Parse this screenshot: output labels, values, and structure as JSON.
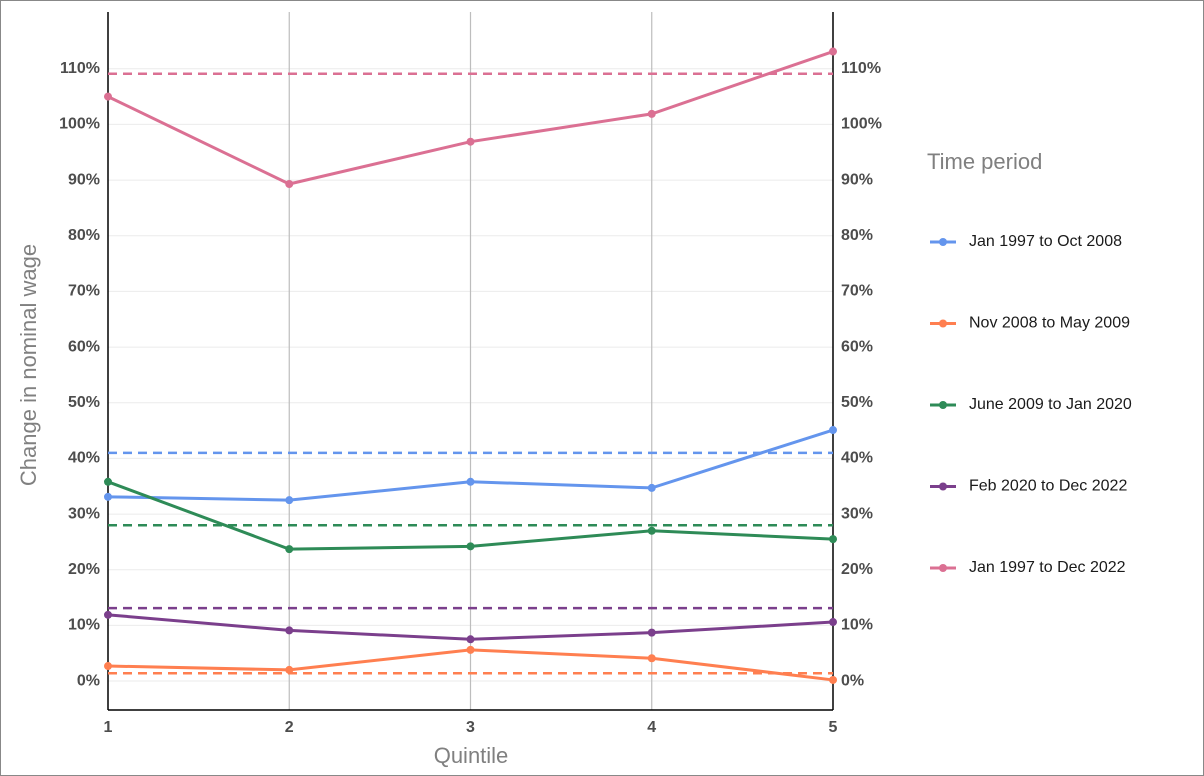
{
  "chart_data": {
    "type": "line",
    "x_label": "Quintile",
    "y_label": "Change in nominal wage",
    "legend_title": "Time period",
    "x": [
      1,
      2,
      3,
      4,
      5
    ],
    "xlim": [
      1,
      5
    ],
    "xticks": [
      1,
      2,
      3,
      4,
      5
    ],
    "ylim": [
      -5.2,
      120.2
    ],
    "yticks": [
      {
        "value": 0,
        "label": "0%"
      },
      {
        "value": 10,
        "label": "10%"
      },
      {
        "value": 20,
        "label": "20%"
      },
      {
        "value": 30,
        "label": "30%"
      },
      {
        "value": 40,
        "label": "40%"
      },
      {
        "value": 50,
        "label": "50%"
      },
      {
        "value": 60,
        "label": "60%"
      },
      {
        "value": 70,
        "label": "70%"
      },
      {
        "value": 80,
        "label": "80%"
      },
      {
        "value": 90,
        "label": "90%"
      },
      {
        "value": 100,
        "label": "100%"
      },
      {
        "value": 110,
        "label": "110%"
      }
    ],
    "grid": true,
    "series": [
      {
        "name": "Jan 1997 to Oct 2008",
        "color": "#6495ed",
        "values": [
          33.1,
          32.5,
          35.8,
          34.7,
          45.1
        ],
        "dashed_value": 41.0
      },
      {
        "name": "Nov 2008 to May 2009",
        "color": "#ff7f50",
        "values": [
          2.7,
          2.0,
          5.6,
          4.1,
          0.2
        ],
        "dashed_value": 1.4
      },
      {
        "name": "June 2009 to Jan 2020",
        "color": "#2e8b57",
        "values": [
          35.8,
          23.7,
          24.2,
          27.0,
          25.5
        ],
        "dashed_value": 28.0
      },
      {
        "name": "Feb 2020 to Dec 2022",
        "color": "#7b3f8c",
        "values": [
          11.9,
          9.1,
          7.5,
          8.7,
          10.6
        ],
        "dashed_value": 13.1
      },
      {
        "name": "Jan 1997 to Dec 2022",
        "color": "#db7093",
        "values": [
          105.0,
          89.3,
          96.9,
          101.9,
          113.1
        ],
        "dashed_value": 109.1
      }
    ]
  }
}
